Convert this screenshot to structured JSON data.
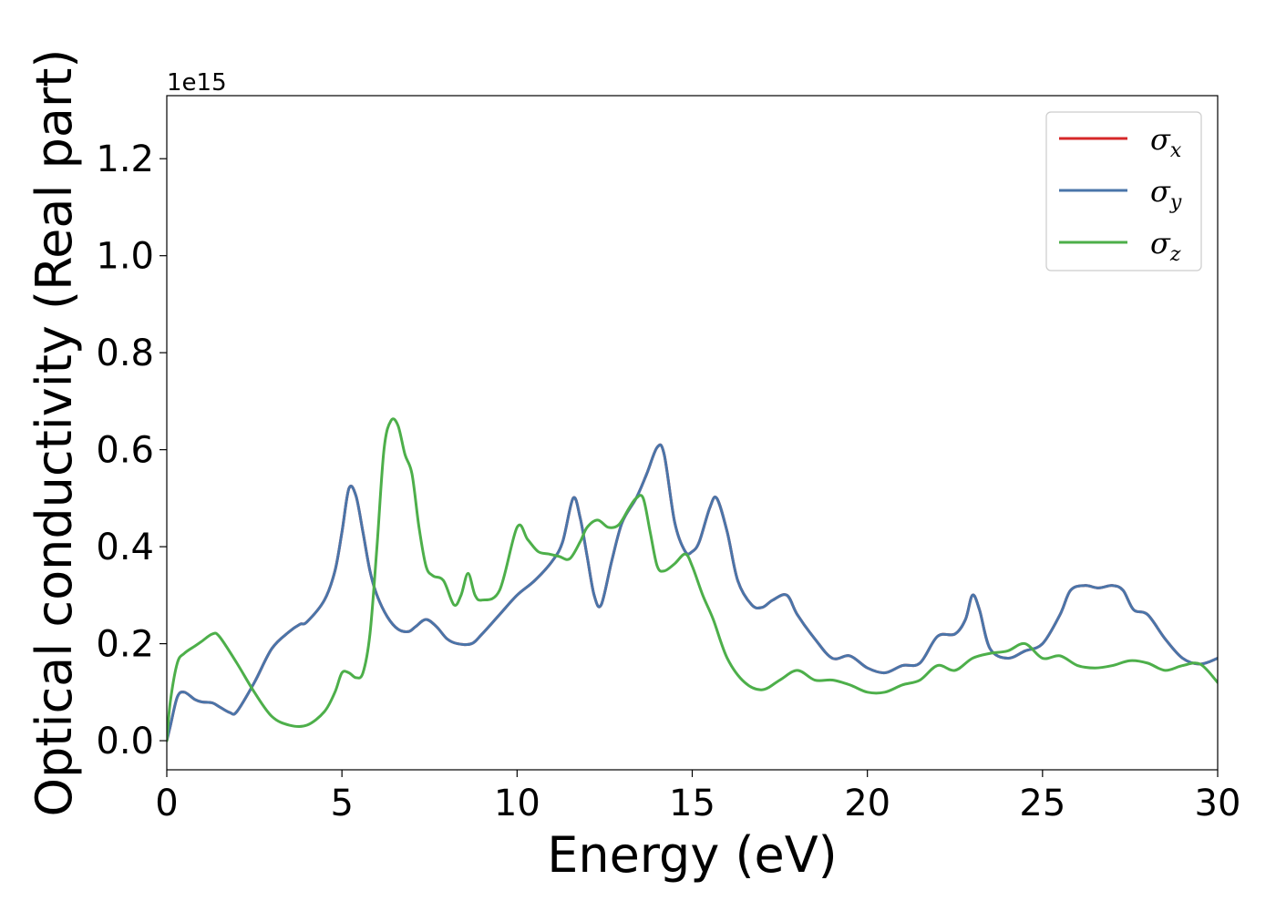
{
  "chart_data": {
    "type": "line",
    "xlabel": "Energy (eV)",
    "ylabel": "Optical conductivity (Real part)",
    "y_offset_text": "1e15",
    "y_scale": 1000000000000000.0,
    "xlim": [
      0,
      30
    ],
    "ylim": [
      -0.06,
      1.33
    ],
    "xticks": [
      0,
      5,
      10,
      15,
      20,
      25,
      30
    ],
    "xtick_labels": [
      "0",
      "5",
      "10",
      "15",
      "20",
      "25",
      "30"
    ],
    "yticks": [
      0.0,
      0.2,
      0.4,
      0.6,
      0.8,
      1.0,
      1.2
    ],
    "ytick_labels": [
      "0.0",
      "0.2",
      "0.4",
      "0.6",
      "0.8",
      "1.0",
      "1.2"
    ],
    "grid": false,
    "legend_position": "top-right",
    "series": [
      {
        "name": "σx",
        "legend_base": "σ",
        "legend_sub": "x",
        "color": "#d62728",
        "x": [
          0,
          0.1,
          0.3,
          0.5,
          0.8,
          1.0,
          1.3,
          1.5,
          1.8,
          2.0,
          2.5,
          3.0,
          3.5,
          3.8,
          4.0,
          4.5,
          4.8,
          5.0,
          5.2,
          5.4,
          5.6,
          5.8,
          6.0,
          6.3,
          6.6,
          6.9,
          7.1,
          7.4,
          7.7,
          8.0,
          8.3,
          8.7,
          9.0,
          9.5,
          10.0,
          10.5,
          11.0,
          11.3,
          11.6,
          11.8,
          12.0,
          12.2,
          12.4,
          12.7,
          13.0,
          13.4,
          13.7,
          14.0,
          14.2,
          14.5,
          14.8,
          15.0,
          15.2,
          15.5,
          15.7,
          16.0,
          16.3,
          16.7,
          17.0,
          17.3,
          17.7,
          18.0,
          18.5,
          19.0,
          19.5,
          20.0,
          20.5,
          21.0,
          21.5,
          22.0,
          22.5,
          22.8,
          23.0,
          23.2,
          23.5,
          24.0,
          24.5,
          25.0,
          25.5,
          25.8,
          26.2,
          26.6,
          27.0,
          27.3,
          27.6,
          28.0,
          28.5,
          29.0,
          29.5,
          30.0
        ],
        "y": [
          0.0,
          0.03,
          0.09,
          0.1,
          0.085,
          0.08,
          0.078,
          0.07,
          0.058,
          0.06,
          0.12,
          0.19,
          0.225,
          0.24,
          0.245,
          0.29,
          0.35,
          0.43,
          0.52,
          0.505,
          0.43,
          0.35,
          0.3,
          0.255,
          0.23,
          0.225,
          0.235,
          0.25,
          0.235,
          0.21,
          0.2,
          0.2,
          0.22,
          0.26,
          0.3,
          0.33,
          0.37,
          0.41,
          0.5,
          0.46,
          0.38,
          0.3,
          0.28,
          0.37,
          0.45,
          0.5,
          0.55,
          0.605,
          0.59,
          0.45,
          0.39,
          0.39,
          0.41,
          0.48,
          0.5,
          0.43,
          0.33,
          0.28,
          0.275,
          0.29,
          0.3,
          0.26,
          0.21,
          0.17,
          0.175,
          0.15,
          0.14,
          0.155,
          0.16,
          0.215,
          0.22,
          0.25,
          0.3,
          0.27,
          0.19,
          0.17,
          0.185,
          0.2,
          0.26,
          0.31,
          0.32,
          0.315,
          0.32,
          0.31,
          0.27,
          0.26,
          0.21,
          0.17,
          0.158,
          0.17
        ]
      },
      {
        "name": "σy",
        "legend_base": "σ",
        "legend_sub": "y",
        "color": "#4a75a9",
        "x": [
          0,
          0.1,
          0.3,
          0.5,
          0.8,
          1.0,
          1.3,
          1.5,
          1.8,
          2.0,
          2.5,
          3.0,
          3.5,
          3.8,
          4.0,
          4.5,
          4.8,
          5.0,
          5.2,
          5.4,
          5.6,
          5.8,
          6.0,
          6.3,
          6.6,
          6.9,
          7.1,
          7.4,
          7.7,
          8.0,
          8.3,
          8.7,
          9.0,
          9.5,
          10.0,
          10.5,
          11.0,
          11.3,
          11.6,
          11.8,
          12.0,
          12.2,
          12.4,
          12.7,
          13.0,
          13.4,
          13.7,
          14.0,
          14.2,
          14.5,
          14.8,
          15.0,
          15.2,
          15.5,
          15.7,
          16.0,
          16.3,
          16.7,
          17.0,
          17.3,
          17.7,
          18.0,
          18.5,
          19.0,
          19.5,
          20.0,
          20.5,
          21.0,
          21.5,
          22.0,
          22.5,
          22.8,
          23.0,
          23.2,
          23.5,
          24.0,
          24.5,
          25.0,
          25.5,
          25.8,
          26.2,
          26.6,
          27.0,
          27.3,
          27.6,
          28.0,
          28.5,
          29.0,
          29.5,
          30.0
        ],
        "y": [
          0.0,
          0.03,
          0.09,
          0.1,
          0.085,
          0.08,
          0.078,
          0.07,
          0.058,
          0.06,
          0.12,
          0.19,
          0.225,
          0.24,
          0.245,
          0.29,
          0.35,
          0.43,
          0.52,
          0.505,
          0.43,
          0.35,
          0.3,
          0.255,
          0.23,
          0.225,
          0.235,
          0.25,
          0.235,
          0.21,
          0.2,
          0.2,
          0.22,
          0.26,
          0.3,
          0.33,
          0.37,
          0.41,
          0.5,
          0.46,
          0.38,
          0.3,
          0.28,
          0.37,
          0.45,
          0.5,
          0.55,
          0.605,
          0.59,
          0.45,
          0.39,
          0.39,
          0.41,
          0.48,
          0.5,
          0.43,
          0.33,
          0.28,
          0.275,
          0.29,
          0.3,
          0.26,
          0.21,
          0.17,
          0.175,
          0.15,
          0.14,
          0.155,
          0.16,
          0.215,
          0.22,
          0.25,
          0.3,
          0.27,
          0.19,
          0.17,
          0.185,
          0.2,
          0.26,
          0.31,
          0.32,
          0.315,
          0.32,
          0.31,
          0.27,
          0.26,
          0.21,
          0.17,
          0.158,
          0.17
        ]
      },
      {
        "name": "σz",
        "legend_base": "σ",
        "legend_sub": "z",
        "color": "#4daf4a",
        "x": [
          0,
          0.1,
          0.3,
          0.5,
          0.8,
          1.0,
          1.3,
          1.5,
          2.0,
          2.5,
          3.0,
          3.5,
          4.0,
          4.5,
          4.8,
          5.0,
          5.2,
          5.4,
          5.6,
          5.8,
          6.0,
          6.2,
          6.4,
          6.6,
          6.8,
          7.0,
          7.2,
          7.4,
          7.6,
          7.9,
          8.2,
          8.4,
          8.6,
          8.8,
          9.0,
          9.5,
          10.0,
          10.3,
          10.6,
          10.9,
          11.2,
          11.5,
          11.8,
          12.0,
          12.3,
          12.6,
          12.9,
          13.2,
          13.4,
          13.6,
          13.8,
          14.0,
          14.2,
          14.5,
          14.8,
          15.0,
          15.3,
          15.6,
          16.0,
          16.5,
          17.0,
          17.5,
          18.0,
          18.5,
          19.0,
          19.5,
          20.0,
          20.5,
          21.0,
          21.5,
          22.0,
          22.5,
          23.0,
          23.5,
          24.0,
          24.5,
          25.0,
          25.5,
          26.0,
          26.5,
          27.0,
          27.5,
          28.0,
          28.5,
          29.0,
          29.5,
          30.0
        ],
        "y": [
          0.0,
          0.08,
          0.16,
          0.18,
          0.195,
          0.205,
          0.22,
          0.215,
          0.16,
          0.1,
          0.05,
          0.032,
          0.032,
          0.06,
          0.1,
          0.14,
          0.14,
          0.13,
          0.14,
          0.22,
          0.4,
          0.6,
          0.66,
          0.65,
          0.59,
          0.55,
          0.44,
          0.36,
          0.34,
          0.33,
          0.28,
          0.3,
          0.345,
          0.3,
          0.29,
          0.31,
          0.44,
          0.415,
          0.39,
          0.385,
          0.38,
          0.375,
          0.41,
          0.44,
          0.455,
          0.44,
          0.445,
          0.48,
          0.5,
          0.5,
          0.43,
          0.36,
          0.35,
          0.365,
          0.385,
          0.36,
          0.3,
          0.25,
          0.17,
          0.12,
          0.105,
          0.125,
          0.145,
          0.125,
          0.125,
          0.115,
          0.1,
          0.1,
          0.115,
          0.125,
          0.155,
          0.145,
          0.17,
          0.18,
          0.185,
          0.2,
          0.17,
          0.175,
          0.155,
          0.15,
          0.155,
          0.165,
          0.16,
          0.145,
          0.155,
          0.158,
          0.12
        ]
      }
    ]
  }
}
